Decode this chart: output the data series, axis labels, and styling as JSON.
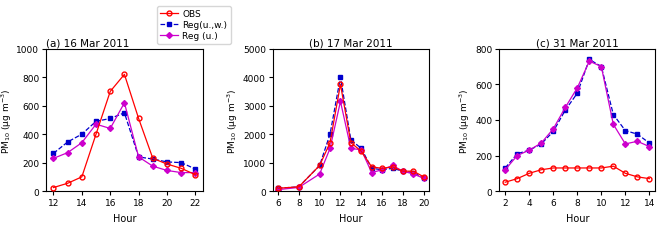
{
  "panel_a": {
    "title": "(a) 16 Mar 2011",
    "xlabel": "Hour",
    "ylabel": "PM$_{10}$ (μg m$^{-3}$)",
    "xlim": [
      11.5,
      22.5
    ],
    "ylim": [
      0,
      1000
    ],
    "xticks": [
      12,
      14,
      16,
      18,
      20,
      22
    ],
    "yticks": [
      0,
      200,
      400,
      600,
      800,
      1000
    ],
    "obs": {
      "x": [
        12,
        13,
        14,
        15,
        16,
        17,
        18,
        19,
        20,
        21,
        22
      ],
      "y": [
        25,
        55,
        100,
        400,
        700,
        820,
        510,
        230,
        190,
        160,
        115
      ]
    },
    "reg_uw": {
      "x": [
        12,
        13,
        14,
        15,
        16,
        17,
        18,
        19,
        20,
        21,
        22
      ],
      "y": [
        265,
        345,
        400,
        490,
        510,
        550,
        240,
        225,
        205,
        200,
        155
      ]
    },
    "reg_u": {
      "x": [
        12,
        13,
        14,
        15,
        16,
        17,
        18,
        19,
        20,
        21,
        22
      ],
      "y": [
        230,
        270,
        340,
        470,
        440,
        620,
        240,
        175,
        145,
        130,
        130
      ]
    }
  },
  "panel_b": {
    "title": "(b) 17 Mar 2011",
    "xlabel": "Hour",
    "ylabel": "PM$_{10}$ (μg m$^{-3}$)",
    "xlim": [
      5.5,
      20.5
    ],
    "ylim": [
      0,
      5000
    ],
    "xticks": [
      6,
      8,
      10,
      12,
      14,
      16,
      18,
      20
    ],
    "yticks": [
      0,
      1000,
      2000,
      3000,
      4000,
      5000
    ],
    "obs": {
      "x": [
        6,
        8,
        10,
        11,
        12,
        13,
        14,
        15,
        16,
        17,
        18,
        19,
        20
      ],
      "y": [
        100,
        150,
        900,
        1700,
        3750,
        1700,
        1400,
        850,
        800,
        850,
        700,
        700,
        500
      ]
    },
    "reg_uw": {
      "x": [
        6,
        8,
        10,
        11,
        12,
        13,
        14,
        15,
        16,
        17,
        18,
        19,
        20
      ],
      "y": [
        100,
        150,
        900,
        2000,
        4000,
        1800,
        1500,
        800,
        750,
        800,
        700,
        650,
        450
      ]
    },
    "reg_u": {
      "x": [
        6,
        8,
        10,
        11,
        12,
        13,
        14,
        15,
        16,
        17,
        18,
        19,
        20
      ],
      "y": [
        50,
        130,
        600,
        1500,
        3150,
        1500,
        1450,
        650,
        750,
        900,
        700,
        600,
        450
      ]
    }
  },
  "panel_c": {
    "title": "(c) 31 Mar 2011",
    "xlabel": "Hour",
    "ylabel": "PM$_{10}$ (μg m$^{-3}$)",
    "xlim": [
      1.5,
      14.5
    ],
    "ylim": [
      0,
      800
    ],
    "xticks": [
      2,
      4,
      6,
      8,
      10,
      12,
      14
    ],
    "yticks": [
      0,
      200,
      400,
      600,
      800
    ],
    "obs": {
      "x": [
        2,
        3,
        4,
        5,
        6,
        7,
        8,
        9,
        10,
        11,
        12,
        13,
        14
      ],
      "y": [
        50,
        70,
        100,
        120,
        130,
        130,
        130,
        130,
        130,
        140,
        100,
        80,
        70
      ]
    },
    "reg_uw": {
      "x": [
        2,
        3,
        4,
        5,
        6,
        7,
        8,
        9,
        10,
        11,
        12,
        13,
        14
      ],
      "y": [
        130,
        210,
        230,
        265,
        335,
        455,
        550,
        740,
        700,
        430,
        340,
        320,
        270
      ]
    },
    "reg_u": {
      "x": [
        2,
        3,
        4,
        5,
        6,
        7,
        8,
        9,
        10,
        11,
        12,
        13,
        14
      ],
      "y": [
        120,
        200,
        230,
        270,
        350,
        470,
        580,
        730,
        700,
        375,
        265,
        280,
        250
      ]
    }
  },
  "legend": {
    "obs_label": "OBS",
    "reg_uw_label": "Reg(u.,w.)",
    "reg_u_label": "Reg (u.)"
  },
  "colors": {
    "obs": "#ff0000",
    "reg_uw": "#0000cd",
    "reg_u": "#cc00cc"
  }
}
